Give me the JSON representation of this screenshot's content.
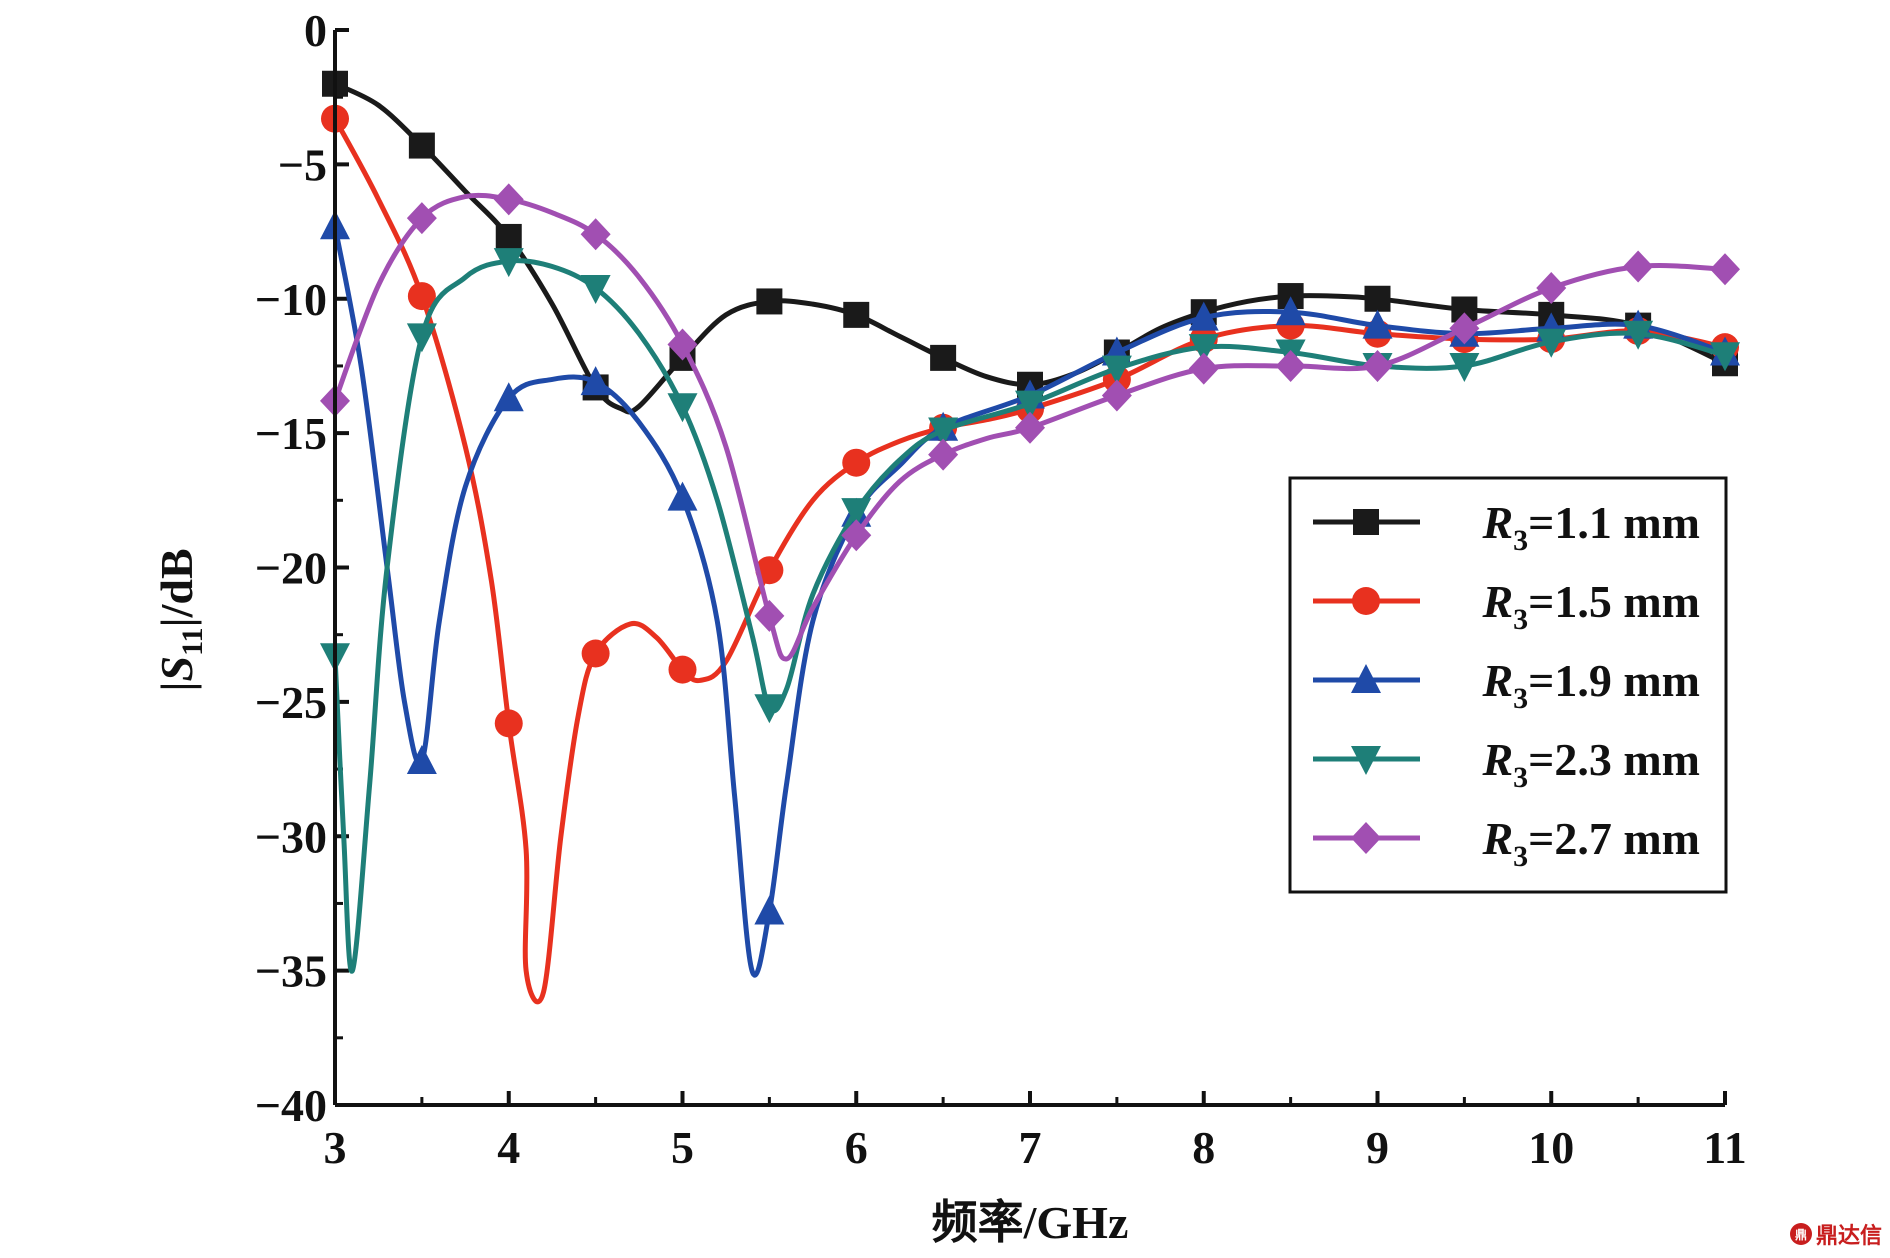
{
  "chart_data": {
    "type": "line",
    "xlabel": "频率/GHz",
    "ylabel_parts": {
      "pre": "|",
      "sym": "S",
      "sub": "11",
      "post": "|/dB"
    },
    "xlim": [
      3,
      11
    ],
    "ylim": [
      -40,
      0
    ],
    "x_ticks": [
      3,
      4,
      5,
      6,
      7,
      8,
      9,
      10,
      11
    ],
    "y_ticks": [
      0,
      -5,
      -10,
      -15,
      -20,
      -25,
      -30,
      -35,
      -40
    ],
    "x_tick_labels": [
      "3",
      "4",
      "5",
      "6",
      "7",
      "8",
      "9",
      "10",
      "11"
    ],
    "y_tick_labels": [
      "0",
      "−5",
      "−10",
      "−15",
      "−20",
      "−25",
      "−30",
      "−35",
      "−40"
    ],
    "legend_position": "right",
    "series": [
      {
        "name": "R3=1.1 mm",
        "label": {
          "sym": "R",
          "sub": "3",
          "rest": "=1.1 mm"
        },
        "color": "#1a1a1a",
        "marker": "square",
        "markers_x": [
          3,
          3.5,
          4,
          4.5,
          5,
          5.5,
          6,
          6.5,
          7,
          7.5,
          8,
          8.5,
          9,
          9.5,
          10,
          10.5,
          11
        ],
        "points": [
          [
            3,
            -2.0
          ],
          [
            3.25,
            -2.8
          ],
          [
            3.5,
            -4.3
          ],
          [
            3.75,
            -6.0
          ],
          [
            4,
            -7.7
          ],
          [
            4.25,
            -10.2
          ],
          [
            4.5,
            -13.3
          ],
          [
            4.65,
            -14.1
          ],
          [
            4.75,
            -14.0
          ],
          [
            5,
            -12.2
          ],
          [
            5.25,
            -10.6
          ],
          [
            5.5,
            -10.1
          ],
          [
            5.75,
            -10.2
          ],
          [
            6,
            -10.6
          ],
          [
            6.25,
            -11.4
          ],
          [
            6.5,
            -12.2
          ],
          [
            6.75,
            -12.9
          ],
          [
            7,
            -13.2
          ],
          [
            7.25,
            -12.8
          ],
          [
            7.5,
            -12.0
          ],
          [
            7.75,
            -11.1
          ],
          [
            8,
            -10.5
          ],
          [
            8.25,
            -10.1
          ],
          [
            8.5,
            -9.9
          ],
          [
            8.75,
            -9.9
          ],
          [
            9,
            -10.0
          ],
          [
            9.5,
            -10.4
          ],
          [
            10,
            -10.6
          ],
          [
            10.5,
            -11.0
          ],
          [
            11,
            -12.4
          ]
        ]
      },
      {
        "name": "R3=1.5 mm",
        "label": {
          "sym": "R",
          "sub": "3",
          "rest": "=1.5 mm"
        },
        "color": "#e8311f",
        "marker": "circle",
        "markers_x": [
          3,
          3.5,
          4,
          4.5,
          5,
          5.5,
          6,
          6.5,
          7,
          7.5,
          8,
          8.5,
          9,
          9.5,
          10,
          10.5,
          11
        ],
        "points": [
          [
            3,
            -3.3
          ],
          [
            3.25,
            -6.3
          ],
          [
            3.5,
            -9.9
          ],
          [
            3.75,
            -15.5
          ],
          [
            3.9,
            -20.5
          ],
          [
            4,
            -25.8
          ],
          [
            4.1,
            -30.5
          ],
          [
            4.1,
            -35.0
          ],
          [
            4.2,
            -35.8
          ],
          [
            4.3,
            -30.0
          ],
          [
            4.4,
            -25.5
          ],
          [
            4.5,
            -23.2
          ],
          [
            4.7,
            -22.1
          ],
          [
            4.85,
            -22.6
          ],
          [
            5,
            -23.8
          ],
          [
            5.1,
            -24.2
          ],
          [
            5.25,
            -23.5
          ],
          [
            5.5,
            -20.1
          ],
          [
            5.75,
            -17.5
          ],
          [
            6,
            -16.1
          ],
          [
            6.25,
            -15.3
          ],
          [
            6.5,
            -14.8
          ],
          [
            6.75,
            -14.5
          ],
          [
            7,
            -14.1
          ],
          [
            7.5,
            -13.0
          ],
          [
            8,
            -11.5
          ],
          [
            8.5,
            -11.0
          ],
          [
            9,
            -11.3
          ],
          [
            9.5,
            -11.5
          ],
          [
            10,
            -11.5
          ],
          [
            10.5,
            -11.2
          ],
          [
            11,
            -11.8
          ]
        ]
      },
      {
        "name": "R3=1.9 mm",
        "label": {
          "sym": "R",
          "sub": "3",
          "rest": "=1.9 mm"
        },
        "color": "#1f4aa8",
        "marker": "triangle-up",
        "markers_x": [
          3,
          3.5,
          4,
          4.5,
          5,
          5.5,
          6,
          6.5,
          7,
          7.5,
          8,
          8.5,
          9,
          9.5,
          10,
          10.5,
          11
        ],
        "points": [
          [
            3,
            -7.3
          ],
          [
            3.15,
            -12.5
          ],
          [
            3.3,
            -20.0
          ],
          [
            3.4,
            -25.0
          ],
          [
            3.5,
            -27.2
          ],
          [
            3.6,
            -22.0
          ],
          [
            3.75,
            -17.0
          ],
          [
            4,
            -13.7
          ],
          [
            4.25,
            -13.0
          ],
          [
            4.5,
            -13.1
          ],
          [
            4.75,
            -14.6
          ],
          [
            5,
            -17.4
          ],
          [
            5.2,
            -22.0
          ],
          [
            5.3,
            -28.5
          ],
          [
            5.4,
            -35.0
          ],
          [
            5.5,
            -32.8
          ],
          [
            5.6,
            -28.0
          ],
          [
            5.75,
            -22.0
          ],
          [
            6,
            -18.0
          ],
          [
            6.25,
            -16.2
          ],
          [
            6.5,
            -14.8
          ],
          [
            7,
            -13.6
          ],
          [
            7.5,
            -12.0
          ],
          [
            8,
            -10.7
          ],
          [
            8.5,
            -10.5
          ],
          [
            9,
            -11.0
          ],
          [
            9.5,
            -11.3
          ],
          [
            10,
            -11.1
          ],
          [
            10.5,
            -11.0
          ],
          [
            11,
            -12.0
          ]
        ]
      },
      {
        "name": "R3=2.3 mm",
        "label": {
          "sym": "R",
          "sub": "3",
          "rest": "=2.3 mm"
        },
        "color": "#1e7f78",
        "marker": "triangle-down",
        "markers_x": [
          3,
          3.5,
          4,
          4.5,
          5,
          5.5,
          6,
          6.5,
          7,
          7.5,
          8,
          8.5,
          9,
          9.5,
          10,
          10.5,
          11
        ],
        "points": [
          [
            3,
            -23.3
          ],
          [
            3.05,
            -30.0
          ],
          [
            3.1,
            -35.0
          ],
          [
            3.2,
            -28.0
          ],
          [
            3.3,
            -20.0
          ],
          [
            3.5,
            -11.4
          ],
          [
            3.75,
            -9.2
          ],
          [
            4,
            -8.6
          ],
          [
            4.25,
            -8.8
          ],
          [
            4.5,
            -9.6
          ],
          [
            4.75,
            -11.3
          ],
          [
            5,
            -14.0
          ],
          [
            5.2,
            -17.5
          ],
          [
            5.4,
            -22.5
          ],
          [
            5.5,
            -25.2
          ],
          [
            5.6,
            -24.5
          ],
          [
            5.75,
            -21.0
          ],
          [
            6,
            -17.9
          ],
          [
            6.25,
            -16.0
          ],
          [
            6.5,
            -14.9
          ],
          [
            7,
            -13.9
          ],
          [
            7.5,
            -12.6
          ],
          [
            8,
            -11.8
          ],
          [
            8.5,
            -12.0
          ],
          [
            9,
            -12.5
          ],
          [
            9.5,
            -12.5
          ],
          [
            10,
            -11.6
          ],
          [
            10.5,
            -11.3
          ],
          [
            11,
            -12.1
          ]
        ]
      },
      {
        "name": "R3=2.7 mm",
        "label": {
          "sym": "R",
          "sub": "3",
          "rest": "=2.7 mm"
        },
        "color": "#a14fb2",
        "marker": "diamond",
        "markers_x": [
          3,
          3.5,
          4,
          4.5,
          5,
          5.5,
          6,
          6.5,
          7,
          7.5,
          8,
          8.5,
          9,
          9.5,
          10,
          10.5,
          11
        ],
        "points": [
          [
            3,
            -13.8
          ],
          [
            3.25,
            -9.5
          ],
          [
            3.5,
            -7.0
          ],
          [
            3.75,
            -6.2
          ],
          [
            4,
            -6.3
          ],
          [
            4.25,
            -6.8
          ],
          [
            4.5,
            -7.6
          ],
          [
            4.75,
            -9.2
          ],
          [
            5,
            -11.7
          ],
          [
            5.25,
            -15.5
          ],
          [
            5.5,
            -21.8
          ],
          [
            5.6,
            -23.4
          ],
          [
            5.75,
            -21.5
          ],
          [
            6,
            -18.8
          ],
          [
            6.25,
            -16.8
          ],
          [
            6.5,
            -15.8
          ],
          [
            6.75,
            -15.2
          ],
          [
            7,
            -14.8
          ],
          [
            7.5,
            -13.6
          ],
          [
            8,
            -12.6
          ],
          [
            8.5,
            -12.5
          ],
          [
            9,
            -12.5
          ],
          [
            9.5,
            -11.1
          ],
          [
            10,
            -9.6
          ],
          [
            10.5,
            -8.8
          ],
          [
            11,
            -8.9
          ]
        ]
      }
    ]
  },
  "watermark": {
    "logo": "鼎",
    "text": "鼎达信"
  }
}
